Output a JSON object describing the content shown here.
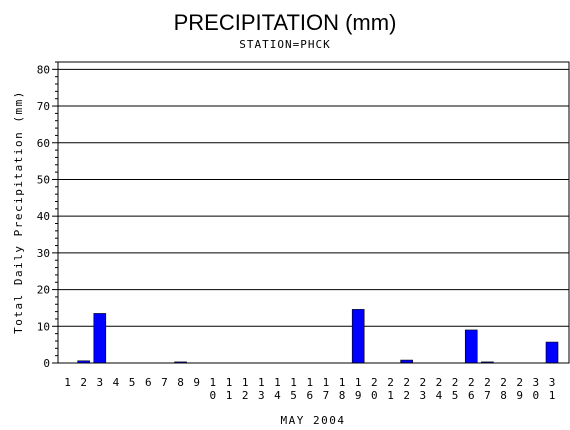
{
  "chart_data": {
    "type": "bar",
    "title": "PRECIPITATION (mm)",
    "subtitle": "STATION=PHCK",
    "xlabel": "MAY 2004",
    "ylabel": "Total Daily Precipitation (mm)",
    "ylim": [
      0,
      82
    ],
    "yticks": [
      0,
      10,
      20,
      30,
      40,
      50,
      60,
      70,
      80
    ],
    "grid": true,
    "bar_color": "#0000ff",
    "categories": [
      "1",
      "2",
      "3",
      "4",
      "5",
      "6",
      "7",
      "8",
      "9",
      "10",
      "11",
      "12",
      "13",
      "14",
      "15",
      "16",
      "17",
      "18",
      "19",
      "20",
      "21",
      "22",
      "23",
      "24",
      "25",
      "26",
      "27",
      "28",
      "29",
      "30",
      "31"
    ],
    "values": [
      0,
      0.6,
      13.5,
      0,
      0,
      0,
      0,
      0.3,
      0,
      0,
      0,
      0,
      0,
      0,
      0,
      0,
      0,
      0,
      14.6,
      0,
      0,
      0.8,
      0,
      0,
      0,
      9.0,
      0.3,
      0,
      0,
      0,
      5.7
    ]
  }
}
